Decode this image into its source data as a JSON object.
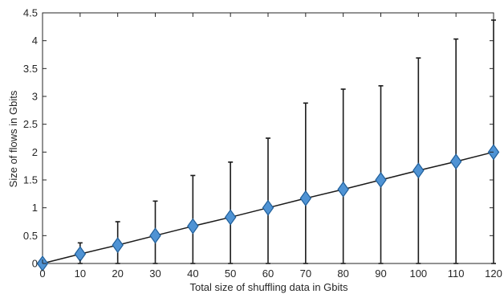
{
  "chart_data": {
    "type": "line",
    "title": "",
    "xlabel": "Total size of shuffling data in Gbits",
    "ylabel": "Size of flows in Gbits",
    "xlim": [
      0,
      120
    ],
    "ylim": [
      0,
      4.5
    ],
    "grid": false,
    "x_ticks": [
      "0",
      "10",
      "20",
      "30",
      "40",
      "50",
      "60",
      "70",
      "80",
      "90",
      "100",
      "110",
      "120"
    ],
    "y_ticks": [
      "0",
      "0.5",
      "1",
      "1.5",
      "2",
      "2.5",
      "3",
      "3.5",
      "4",
      "4.5"
    ],
    "series": [
      {
        "x": [
          0,
          10,
          20,
          30,
          40,
          50,
          60,
          70,
          80,
          90,
          100,
          110,
          120
        ],
        "y": [
          0,
          0.17,
          0.33,
          0.5,
          0.67,
          0.83,
          1.0,
          1.17,
          1.33,
          1.5,
          1.67,
          1.83,
          2.0
        ],
        "error_upper": [
          0,
          0.37,
          0.75,
          1.12,
          1.58,
          1.82,
          2.25,
          2.88,
          3.13,
          3.19,
          3.69,
          4.03,
          4.37
        ],
        "error_lower": [
          0,
          0,
          0,
          0,
          0,
          0,
          0,
          0,
          0,
          0,
          0,
          0,
          0
        ]
      }
    ],
    "colors": {
      "line": "#1a1a1a",
      "marker_fill": "#4f93d4",
      "marker_stroke": "#1f5e99",
      "axis": "#262626"
    }
  }
}
